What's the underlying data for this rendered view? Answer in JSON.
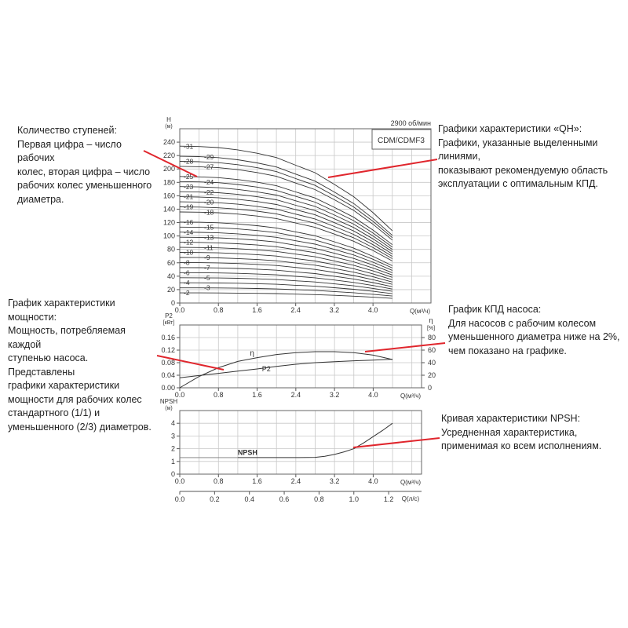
{
  "notes": {
    "stages": [
      "Количество ступеней:",
      "Первая цифра – число рабочих",
      "колес, вторая цифра – число",
      "рабочих колес уменьшенного",
      "диаметра."
    ],
    "qh": [
      "Графики характеристики «QH»:",
      "Графики, указанные выделенными линиями,",
      "показывают рекомендуемую область",
      "эксплуатации с оптимальным КПД."
    ],
    "power": [
      "График характеристики мощности:",
      "Мощность, потребляемая каждой",
      "ступенью насоса. Представлены",
      "графики характеристики",
      "мощности для рабочих колес",
      "стандартного (1/1) и",
      "уменьшенного (2/3) диаметров."
    ],
    "efficiency": [
      "График КПД насоса:",
      "Для насосов с рабочим колесом",
      "уменьшенного диаметра ниже на 2%,",
      "чем показано на графике."
    ],
    "npsh": [
      "Кривая характеристики NPSH:",
      "Усредненная характеристика,",
      "применимая ко всем исполнениям."
    ]
  },
  "colors": {
    "annotation_line": "#e0262d",
    "curve": "#333333",
    "grid": "#c8c8c8"
  },
  "chart_data": [
    {
      "type": "line",
      "title": "CDM/CDMF3",
      "subtitle": "2900 об/мин",
      "ylabel": "H",
      "yunit": "(м)",
      "xlabel": "Q(м³/ч)",
      "xlim": [
        0,
        5.2
      ],
      "ylim": [
        0,
        260
      ],
      "xticks": [
        "0.0",
        "0.8",
        "1.6",
        "2.4",
        "3.2",
        "4.0"
      ],
      "yticks": [
        "0",
        "20",
        "40",
        "60",
        "80",
        "100",
        "120",
        "140",
        "160",
        "180",
        "200",
        "220",
        "240"
      ],
      "grid": true,
      "x": [
        0,
        0.4,
        0.8,
        1.2,
        1.6,
        2.0,
        2.4,
        2.8,
        3.2,
        3.6,
        4.0,
        4.4
      ],
      "head_per_stage": [
        7.55,
        7.53,
        7.48,
        7.37,
        7.21,
        7.0,
        6.63,
        6.27,
        5.71,
        5.12,
        4.35,
        3.48
      ],
      "stage_labels_col1": [
        "-31",
        "-28",
        "-25",
        "-23",
        "-21",
        "-19",
        "-16",
        "-14",
        "-12",
        "-10",
        "-8",
        "-6",
        "-4",
        "-2"
      ],
      "stage_labels_col2": [
        "-29",
        "-27",
        "-24",
        "-22",
        "-20",
        "-18",
        "-15",
        "-13",
        "-11",
        "-9",
        "-7",
        "-5",
        "-3"
      ],
      "stages_col1": [
        31,
        28,
        25,
        23,
        21,
        19,
        16,
        14,
        12,
        10,
        8,
        6,
        4,
        2
      ],
      "stages_col2": [
        29,
        27,
        24,
        22,
        20,
        18,
        15,
        13,
        11,
        9,
        7,
        5,
        3
      ]
    },
    {
      "type": "line",
      "ylabel": "P2",
      "yunit": "[кВт]",
      "y2label": "η",
      "y2unit": "[%]",
      "xlabel": "Q(м³/ч)",
      "xlim": [
        0,
        5.0
      ],
      "ylim": [
        0,
        0.2
      ],
      "y2lim": [
        0,
        100
      ],
      "xticks": [
        "0.0",
        "0.8",
        "1.6",
        "2.4",
        "3.2",
        "4.0"
      ],
      "yticks": [
        "0.00",
        "0.04",
        "0.08",
        "0.12",
        "0.16"
      ],
      "y2ticks": [
        "0",
        "20",
        "40",
        "60",
        "80"
      ],
      "grid": true,
      "series": [
        {
          "name": "P2",
          "axis": "left",
          "x": [
            0,
            0.4,
            0.8,
            1.2,
            1.6,
            2.0,
            2.4,
            2.8,
            3.2,
            3.6,
            4.0,
            4.4
          ],
          "values": [
            0.032,
            0.039,
            0.046,
            0.053,
            0.06,
            0.068,
            0.075,
            0.08,
            0.083,
            0.086,
            0.088,
            0.091
          ]
        },
        {
          "name": "η",
          "axis": "right",
          "x": [
            0,
            0.4,
            0.8,
            1.2,
            1.6,
            2.0,
            2.4,
            2.8,
            3.2,
            3.6,
            4.0,
            4.4
          ],
          "values": [
            0,
            18,
            32,
            42,
            48,
            53,
            56,
            57.5,
            57.5,
            56,
            52,
            45
          ]
        }
      ]
    },
    {
      "type": "line",
      "ylabel": "NPSH",
      "yunit": "(м)",
      "xlabel": "Q(м³/ч)",
      "xlim": [
        0,
        5.0
      ],
      "ylim": [
        0,
        5
      ],
      "xticks": [
        "0.0",
        "0.8",
        "1.6",
        "2.4",
        "3.2",
        "4.0"
      ],
      "yticks": [
        "0",
        "1",
        "2",
        "3",
        "4"
      ],
      "grid": true,
      "series": [
        {
          "name": "NPSH",
          "x": [
            1.2,
            1.6,
            2.0,
            2.4,
            2.8,
            3.0,
            3.2,
            3.4,
            3.6,
            3.8,
            4.0,
            4.2,
            4.4
          ],
          "values": [
            1.3,
            1.3,
            1.3,
            1.3,
            1.32,
            1.4,
            1.55,
            1.75,
            2.0,
            2.45,
            2.95,
            3.45,
            4.0
          ]
        }
      ],
      "secondary_xlabel": "Q(л/с)",
      "secondary_xticks": [
        "0.0",
        "0.2",
        "0.4",
        "0.6",
        "0.8",
        "1.0",
        "1.2"
      ]
    }
  ]
}
